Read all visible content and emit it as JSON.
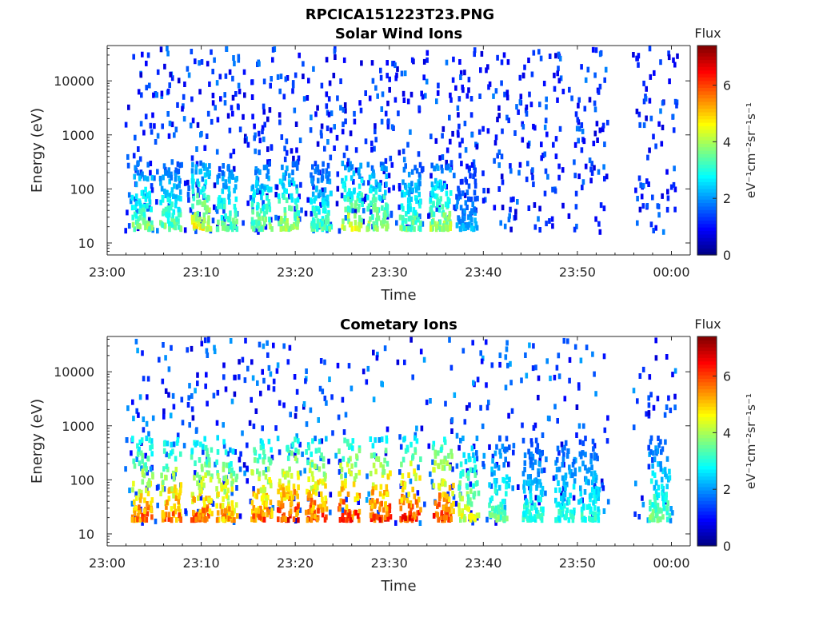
{
  "figure": {
    "title": "RPCICA151223T23.PNG"
  },
  "colors": {
    "colormap": [
      "#00007f",
      "#0000ff",
      "#007fff",
      "#00ffff",
      "#7fff7f",
      "#ffff00",
      "#ff7f00",
      "#ff0000",
      "#7f0000"
    ]
  },
  "chart_data": [
    {
      "type": "heatmap",
      "title": "Solar Wind Ions",
      "xlabel": "Time",
      "ylabel": "Energy (eV)",
      "x_ticks": [
        "23:00",
        "23:10",
        "23:20",
        "23:30",
        "23:40",
        "23:50",
        "00:00"
      ],
      "x_range_minutes": [
        0,
        62
      ],
      "y_scale": "log",
      "y_ticks": [
        "10",
        "100",
        "1000",
        "10000"
      ],
      "y_range": [
        6,
        45000
      ],
      "colorbar": {
        "title": "Flux",
        "label": "eV⁻¹cm⁻²sr⁻¹s⁻¹",
        "ticks": [
          "0",
          "2",
          "4",
          "6"
        ],
        "range": [
          0,
          7.4
        ]
      },
      "data_gaps_minutes": [
        [
          53.2,
          55.8
        ]
      ],
      "bursts": [
        {
          "t": 3.5,
          "flux": 4.2
        },
        {
          "t": 6.5,
          "flux": 4.0
        },
        {
          "t": 9.8,
          "flux": 5.0
        },
        {
          "t": 12.5,
          "flux": 4.0
        },
        {
          "t": 16.2,
          "flux": 4.2
        },
        {
          "t": 19.0,
          "flux": 4.5
        },
        {
          "t": 22.5,
          "flux": 3.8
        },
        {
          "t": 25.8,
          "flux": 4.8
        },
        {
          "t": 28.5,
          "flux": 4.5
        },
        {
          "t": 32.0,
          "flux": 4.0
        },
        {
          "t": 35.2,
          "flux": 4.5
        },
        {
          "t": 38.0,
          "flux": 2.5
        }
      ]
    },
    {
      "type": "heatmap",
      "title": "Cometary Ions",
      "xlabel": "Time",
      "ylabel": "Energy (eV)",
      "x_ticks": [
        "23:00",
        "23:10",
        "23:20",
        "23:30",
        "23:40",
        "23:50",
        "00:00"
      ],
      "x_range_minutes": [
        0,
        62
      ],
      "y_scale": "log",
      "y_ticks": [
        "10",
        "100",
        "1000",
        "10000"
      ],
      "y_range": [
        6,
        45000
      ],
      "colorbar": {
        "title": "Flux",
        "label": "eV⁻¹cm⁻²sr⁻¹s⁻¹",
        "ticks": [
          "0",
          "2",
          "4",
          "6"
        ],
        "range": [
          0,
          7.4
        ]
      },
      "data_gaps_minutes": [
        [
          53.2,
          55.8
        ]
      ],
      "bursts": [
        {
          "t": 3.5,
          "flux": 6.5
        },
        {
          "t": 6.5,
          "flux": 6.4
        },
        {
          "t": 9.8,
          "flux": 6.5
        },
        {
          "t": 12.5,
          "flux": 6.0
        },
        {
          "t": 16.2,
          "flux": 6.5
        },
        {
          "t": 19.0,
          "flux": 7.0
        },
        {
          "t": 22.0,
          "flux": 6.8
        },
        {
          "t": 25.5,
          "flux": 7.0
        },
        {
          "t": 28.8,
          "flux": 7.0
        },
        {
          "t": 32.0,
          "flux": 7.0
        },
        {
          "t": 35.5,
          "flux": 7.0
        },
        {
          "t": 38.2,
          "flux": 5.0
        },
        {
          "t": 41.5,
          "flux": 4.0
        },
        {
          "t": 45.0,
          "flux": 3.5
        },
        {
          "t": 48.5,
          "flux": 3.5
        },
        {
          "t": 51.0,
          "flux": 3.5
        },
        {
          "t": 58.5,
          "flux": 4.0
        }
      ]
    }
  ]
}
